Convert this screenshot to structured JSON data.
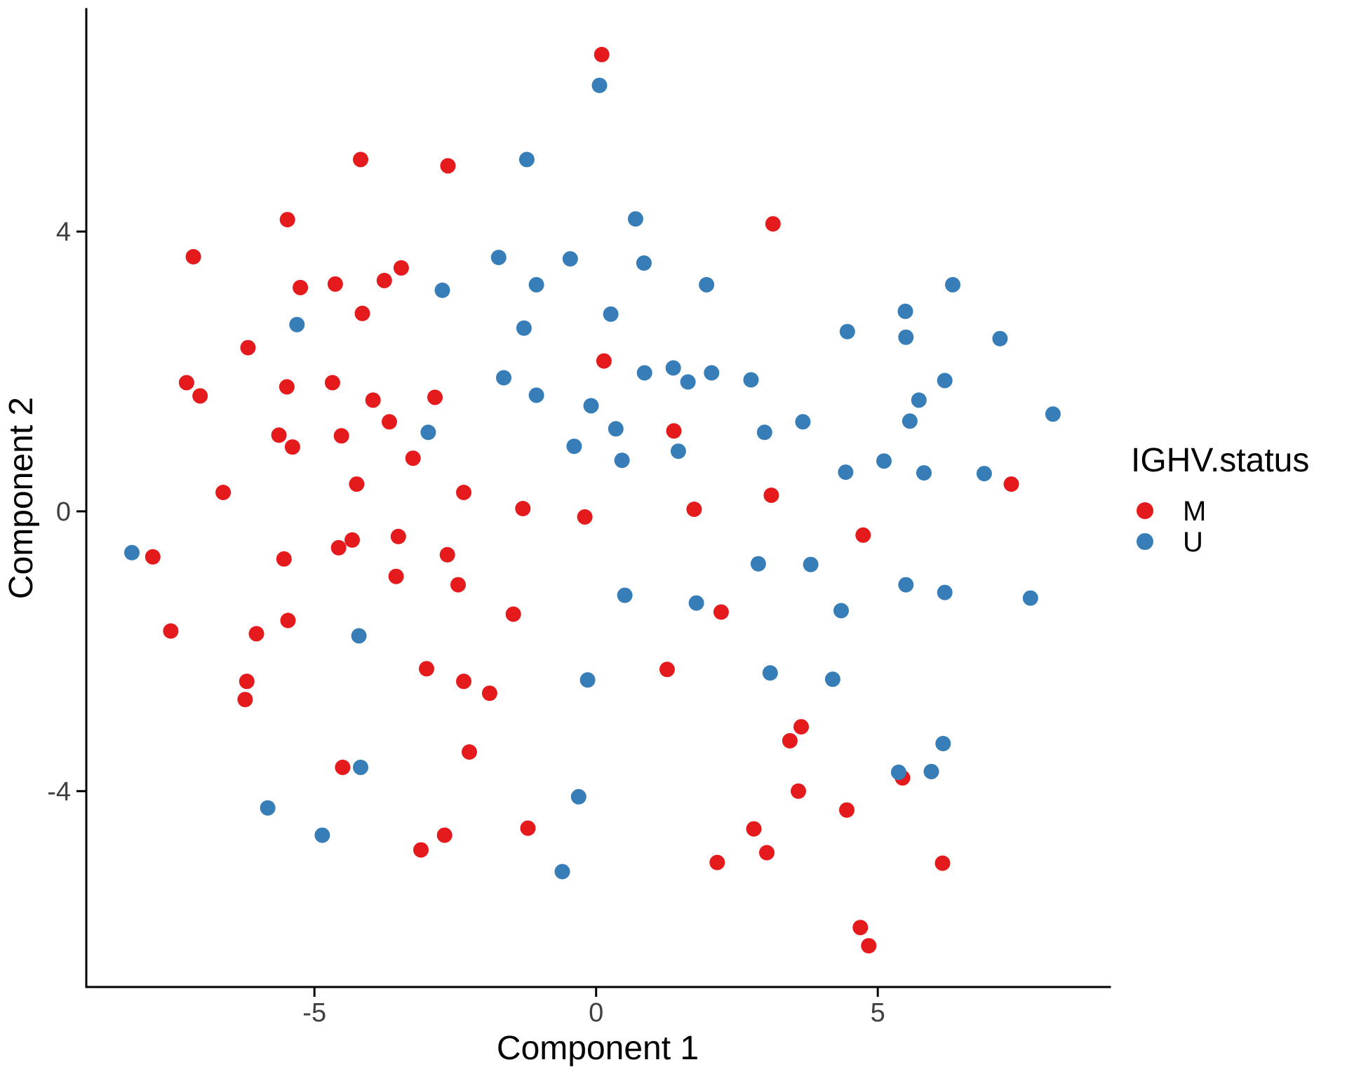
{
  "figure": {
    "background": "#FFFFFF",
    "axis_color": "#000000",
    "tick_label_color": "#404040"
  },
  "chart_data": {
    "type": "scatter",
    "title": "",
    "xlabel": "Component 1",
    "ylabel": "Component 2",
    "x_ticks": [
      -5,
      0,
      5
    ],
    "y_ticks": [
      4,
      0,
      -4
    ],
    "xlim": [
      -9.05,
      9.12
    ],
    "ylim": [
      -6.8,
      7.18
    ],
    "grid": false,
    "marker_radius": 11,
    "legend": {
      "title": "IGHV.status",
      "position": "right"
    },
    "series": [
      {
        "name": "M",
        "color": "#E41A1C",
        "points": [
          [
            -5.48,
            4.17
          ],
          [
            -4.18,
            5.03
          ],
          [
            -2.63,
            4.94
          ],
          [
            0.1,
            6.53
          ],
          [
            3.14,
            4.11
          ],
          [
            -7.15,
            3.64
          ],
          [
            -5.25,
            3.2
          ],
          [
            -6.18,
            2.34
          ],
          [
            -7.27,
            1.84
          ],
          [
            -7.03,
            1.65
          ],
          [
            -5.49,
            1.78
          ],
          [
            -5.63,
            1.09
          ],
          [
            -5.39,
            0.92
          ],
          [
            -4.63,
            3.25
          ],
          [
            -3.76,
            3.3
          ],
          [
            -3.46,
            3.48
          ],
          [
            -4.15,
            2.83
          ],
          [
            -4.68,
            1.84
          ],
          [
            -3.96,
            1.59
          ],
          [
            -2.86,
            1.63
          ],
          [
            -3.67,
            1.28
          ],
          [
            -4.52,
            1.08
          ],
          [
            -3.25,
            0.76
          ],
          [
            -4.25,
            0.39
          ],
          [
            0.14,
            2.15
          ],
          [
            1.38,
            1.15
          ],
          [
            7.37,
            0.39
          ],
          [
            -6.62,
            0.27
          ],
          [
            -2.35,
            0.27
          ],
          [
            -7.87,
            -0.65
          ],
          [
            -5.54,
            -0.68
          ],
          [
            -7.55,
            -1.71
          ],
          [
            -6.03,
            -1.75
          ],
          [
            -5.47,
            -1.56
          ],
          [
            -6.2,
            -2.43
          ],
          [
            -6.23,
            -2.69
          ],
          [
            -1.3,
            0.04
          ],
          [
            -0.2,
            -0.08
          ],
          [
            -4.57,
            -0.52
          ],
          [
            -4.33,
            -0.41
          ],
          [
            -3.51,
            -0.36
          ],
          [
            -2.64,
            -0.62
          ],
          [
            -3.55,
            -0.93
          ],
          [
            -2.45,
            -1.05
          ],
          [
            -1.47,
            -1.47
          ],
          [
            -3.01,
            -2.25
          ],
          [
            -2.35,
            -2.43
          ],
          [
            -1.89,
            -2.6
          ],
          [
            1.74,
            0.03
          ],
          [
            3.11,
            0.23
          ],
          [
            2.22,
            -1.44
          ],
          [
            1.26,
            -2.26
          ],
          [
            3.64,
            -3.08
          ],
          [
            4.74,
            -0.34
          ],
          [
            -4.5,
            -3.66
          ],
          [
            -2.25,
            -3.44
          ],
          [
            -1.21,
            -4.53
          ],
          [
            -2.69,
            -4.63
          ],
          [
            -3.11,
            -4.84
          ],
          [
            3.44,
            -3.28
          ],
          [
            3.59,
            -4.0
          ],
          [
            2.8,
            -4.54
          ],
          [
            3.03,
            -4.88
          ],
          [
            2.15,
            -5.02
          ],
          [
            5.44,
            -3.81
          ],
          [
            4.45,
            -4.27
          ],
          [
            6.15,
            -5.03
          ],
          [
            4.69,
            -5.95
          ],
          [
            4.84,
            -6.21
          ]
        ]
      },
      {
        "name": "U",
        "color": "#377EB8",
        "points": [
          [
            -1.23,
            5.03
          ],
          [
            0.06,
            6.09
          ],
          [
            0.7,
            4.18
          ],
          [
            -5.31,
            2.67
          ],
          [
            -2.73,
            3.16
          ],
          [
            -1.73,
            3.63
          ],
          [
            -0.46,
            3.61
          ],
          [
            -1.06,
            3.24
          ],
          [
            -1.28,
            2.62
          ],
          [
            -1.64,
            1.91
          ],
          [
            -1.06,
            1.66
          ],
          [
            -2.98,
            1.13
          ],
          [
            -0.39,
            0.93
          ],
          [
            0.85,
            3.55
          ],
          [
            1.96,
            3.24
          ],
          [
            0.26,
            2.82
          ],
          [
            0.86,
            1.98
          ],
          [
            1.37,
            2.05
          ],
          [
            1.63,
            1.85
          ],
          [
            2.05,
            1.98
          ],
          [
            2.75,
            1.88
          ],
          [
            -0.09,
            1.51
          ],
          [
            0.35,
            1.18
          ],
          [
            2.99,
            1.13
          ],
          [
            3.67,
            1.28
          ],
          [
            1.46,
            0.86
          ],
          [
            0.46,
            0.73
          ],
          [
            6.33,
            3.24
          ],
          [
            5.49,
            2.86
          ],
          [
            4.46,
            2.57
          ],
          [
            5.5,
            2.49
          ],
          [
            7.17,
            2.47
          ],
          [
            6.19,
            1.87
          ],
          [
            5.73,
            1.59
          ],
          [
            8.11,
            1.39
          ],
          [
            5.57,
            1.29
          ],
          [
            5.11,
            0.72
          ],
          [
            5.82,
            0.55
          ],
          [
            6.89,
            0.54
          ],
          [
            4.43,
            0.56
          ],
          [
            -8.24,
            -0.59
          ],
          [
            -4.21,
            -1.78
          ],
          [
            2.88,
            -0.75
          ],
          [
            3.81,
            -0.76
          ],
          [
            0.51,
            -1.2
          ],
          [
            1.78,
            -1.31
          ],
          [
            4.35,
            -1.42
          ],
          [
            3.09,
            -2.31
          ],
          [
            4.2,
            -2.4
          ],
          [
            -0.15,
            -2.41
          ],
          [
            5.5,
            -1.05
          ],
          [
            6.19,
            -1.16
          ],
          [
            7.71,
            -1.24
          ],
          [
            -5.83,
            -4.24
          ],
          [
            -4.86,
            -4.63
          ],
          [
            -4.18,
            -3.66
          ],
          [
            -0.31,
            -4.08
          ],
          [
            -0.6,
            -5.15
          ],
          [
            6.16,
            -3.32
          ],
          [
            5.37,
            -3.73
          ],
          [
            5.95,
            -3.72
          ]
        ]
      }
    ]
  }
}
